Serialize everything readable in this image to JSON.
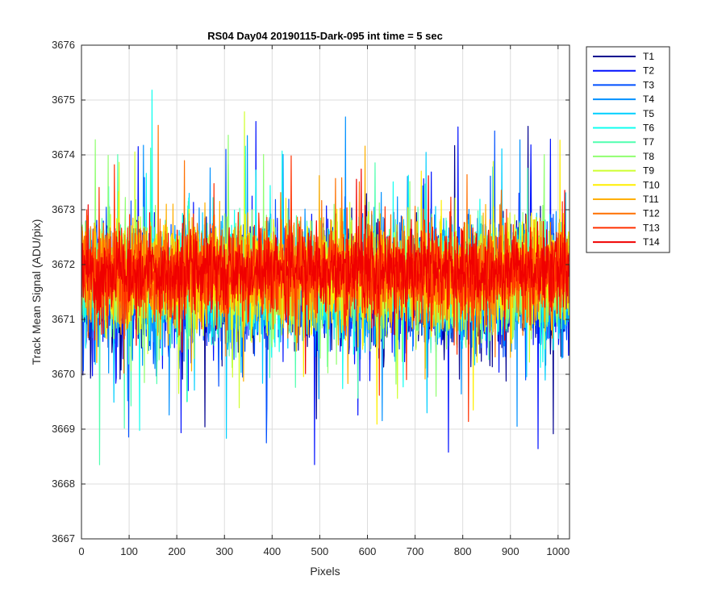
{
  "chart_data": {
    "type": "line",
    "title": "RS04 Day04 20190115-Dark-095 int time = 5 sec",
    "xlabel": "Pixels",
    "ylabel": "Track Mean Signal (ADU/pix)",
    "xlim": [
      0,
      1024
    ],
    "ylim": [
      3667,
      3676
    ],
    "xticks": [
      0,
      100,
      200,
      300,
      400,
      500,
      600,
      700,
      800,
      900,
      1000
    ],
    "yticks": [
      3667,
      3668,
      3669,
      3670,
      3671,
      3672,
      3673,
      3674,
      3675,
      3676
    ],
    "grid": true,
    "legend_position": "outside-top-right",
    "pixel_count": 1024,
    "series": [
      {
        "name": "T1",
        "color": "#00008F",
        "mean": 3671.5,
        "spread": 1.05
      },
      {
        "name": "T2",
        "color": "#0010FF",
        "mean": 3671.55,
        "spread": 1.0
      },
      {
        "name": "T3",
        "color": "#0050FF",
        "mean": 3671.6,
        "spread": 0.98
      },
      {
        "name": "T4",
        "color": "#0090FF",
        "mean": 3671.65,
        "spread": 0.96
      },
      {
        "name": "T5",
        "color": "#00CFFF",
        "mean": 3671.7,
        "spread": 0.94
      },
      {
        "name": "T6",
        "color": "#10FFEF",
        "mean": 3671.72,
        "spread": 0.92
      },
      {
        "name": "T7",
        "color": "#50FFAF",
        "mean": 3671.74,
        "spread": 0.9
      },
      {
        "name": "T8",
        "color": "#90FF70",
        "mean": 3671.76,
        "spread": 0.9
      },
      {
        "name": "T9",
        "color": "#CFFF30",
        "mean": 3671.78,
        "spread": 0.88
      },
      {
        "name": "T10",
        "color": "#FFEF00",
        "mean": 3671.8,
        "spread": 0.88
      },
      {
        "name": "T11",
        "color": "#FFAF00",
        "mean": 3671.82,
        "spread": 0.86
      },
      {
        "name": "T12",
        "color": "#FF7000",
        "mean": 3671.84,
        "spread": 0.84
      },
      {
        "name": "T13",
        "color": "#FF3000",
        "mean": 3671.85,
        "spread": 0.8
      },
      {
        "name": "T14",
        "color": "#F00000",
        "mean": 3671.87,
        "spread": 0.65
      }
    ]
  }
}
